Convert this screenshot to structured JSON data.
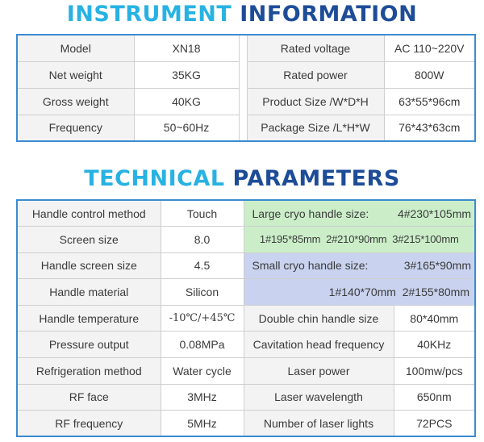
{
  "instrument": {
    "heading_a": "INSTRUMENT",
    "heading_b": "INFORMATION",
    "rows": [
      [
        "Model",
        "XN18",
        "Rated voltage",
        "AC 110~220V"
      ],
      [
        "Net weight",
        "35KG",
        "Rated power",
        "800W"
      ],
      [
        "Gross weight",
        "40KG",
        "Product Size /W*D*H",
        "63*55*96cm"
      ],
      [
        "Frequency",
        "50~60Hz",
        "Package Size /L*H*W",
        "76*43*63cm"
      ]
    ]
  },
  "technical": {
    "heading_a": "TECHNICAL",
    "heading_b": "PARAMETERS",
    "left_rows": [
      [
        "Handle control method",
        "Touch"
      ],
      [
        "Screen size",
        "8.0"
      ],
      [
        "Handle screen size",
        "4.5"
      ],
      [
        "Handle material",
        "Silicon"
      ],
      [
        "Handle temperature",
        "-10℃/+45℃"
      ],
      [
        "Pressure output",
        "0.08MPa"
      ],
      [
        "Refrigeration method",
        "Water cycle"
      ],
      [
        "RF face",
        "3MHz"
      ],
      [
        "RF frequency",
        "5MHz"
      ]
    ],
    "large_cryo_label": "Large cryo handle size:",
    "large_cryo_first": "4#230*105mm",
    "large_cryo_rest": "1#195*85mm  2#210*90mm  3#215*100mm",
    "small_cryo_label": "Small cryo handle size:",
    "small_cryo_first": "3#165*90mm",
    "small_cryo_rest": "1#140*70mm  2#155*80mm",
    "right_rows": [
      [
        "Double chin handle size",
        "80*40mm"
      ],
      [
        "Cavitation head frequency",
        "40KHz"
      ],
      [
        "Laser power",
        "100mw/pcs"
      ],
      [
        "Laser wavelength",
        "650nm"
      ],
      [
        "Number of laser lights",
        "72PCS"
      ]
    ]
  }
}
